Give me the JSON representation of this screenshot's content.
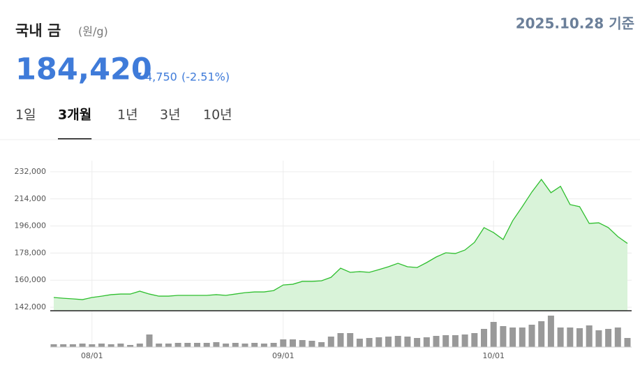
{
  "header": {
    "title": "국내 금",
    "unit": "(원/g)",
    "date": "2025.10.28 기준"
  },
  "price": {
    "value": "184,420",
    "change": "4,750",
    "change_pct": "(-2.51%)"
  },
  "tabs": [
    "1일",
    "3개월",
    "1년",
    "3년",
    "10년"
  ],
  "active_tab": 1,
  "chart_data": [
    {
      "type": "line",
      "color": "#2fbf2f",
      "fill": "#d9f3d9",
      "grid": true,
      "categories": [
        null,
        null,
        null,
        null,
        "08/01",
        null,
        null,
        null,
        null,
        null,
        null,
        null,
        null,
        null,
        null,
        null,
        null,
        null,
        null,
        null,
        null,
        null,
        null,
        null,
        "09/01",
        null,
        null,
        null,
        null,
        null,
        null,
        null,
        null,
        null,
        null,
        null,
        null,
        null,
        null,
        null,
        null,
        null,
        null,
        null,
        null,
        null,
        "10/01",
        null,
        null,
        null,
        null,
        null,
        null,
        null,
        null,
        null,
        null,
        null,
        null,
        null,
        null
      ],
      "values": [
        148500,
        148000,
        147600,
        147100,
        148500,
        149400,
        150400,
        150800,
        150800,
        152700,
        150800,
        149400,
        149400,
        149900,
        149900,
        149900,
        149900,
        150400,
        149900,
        150800,
        151700,
        152200,
        152200,
        153100,
        156800,
        157300,
        159200,
        159200,
        159600,
        161900,
        168000,
        165200,
        165700,
        165200,
        167000,
        168900,
        171200,
        168900,
        168400,
        171700,
        175400,
        178200,
        177700,
        180000,
        185100,
        194900,
        191600,
        187000,
        199500,
        208800,
        218500,
        226900,
        218100,
        222300,
        210200,
        208800,
        197700,
        198100,
        194900,
        188900,
        184420
      ],
      "ylim": [
        139700,
        239400
      ],
      "yticks": [
        {
          "value": 142000,
          "label": "142,000"
        },
        {
          "value": 160000,
          "label": "160,000"
        },
        {
          "value": 178000,
          "label": "178,000"
        },
        {
          "value": 196000,
          "label": "196,000"
        },
        {
          "value": 214000,
          "label": "214,000"
        },
        {
          "value": 232000,
          "label": "232,000"
        }
      ]
    },
    {
      "type": "bar",
      "color": "#999999",
      "ylim": [
        0,
        50
      ],
      "values": [
        4,
        4,
        4,
        5,
        4,
        5,
        4,
        5,
        3,
        5,
        18,
        5,
        5,
        6,
        6,
        6,
        6,
        7,
        5,
        6,
        5,
        6,
        5,
        6,
        11,
        11,
        10,
        9,
        7,
        15,
        20,
        20,
        12,
        13,
        14,
        15,
        16,
        15,
        13,
        14,
        16,
        17,
        17,
        18,
        20,
        26,
        36,
        30,
        28,
        28,
        32,
        37,
        45,
        28,
        28,
        27,
        31,
        24,
        26,
        28,
        13
      ]
    }
  ]
}
